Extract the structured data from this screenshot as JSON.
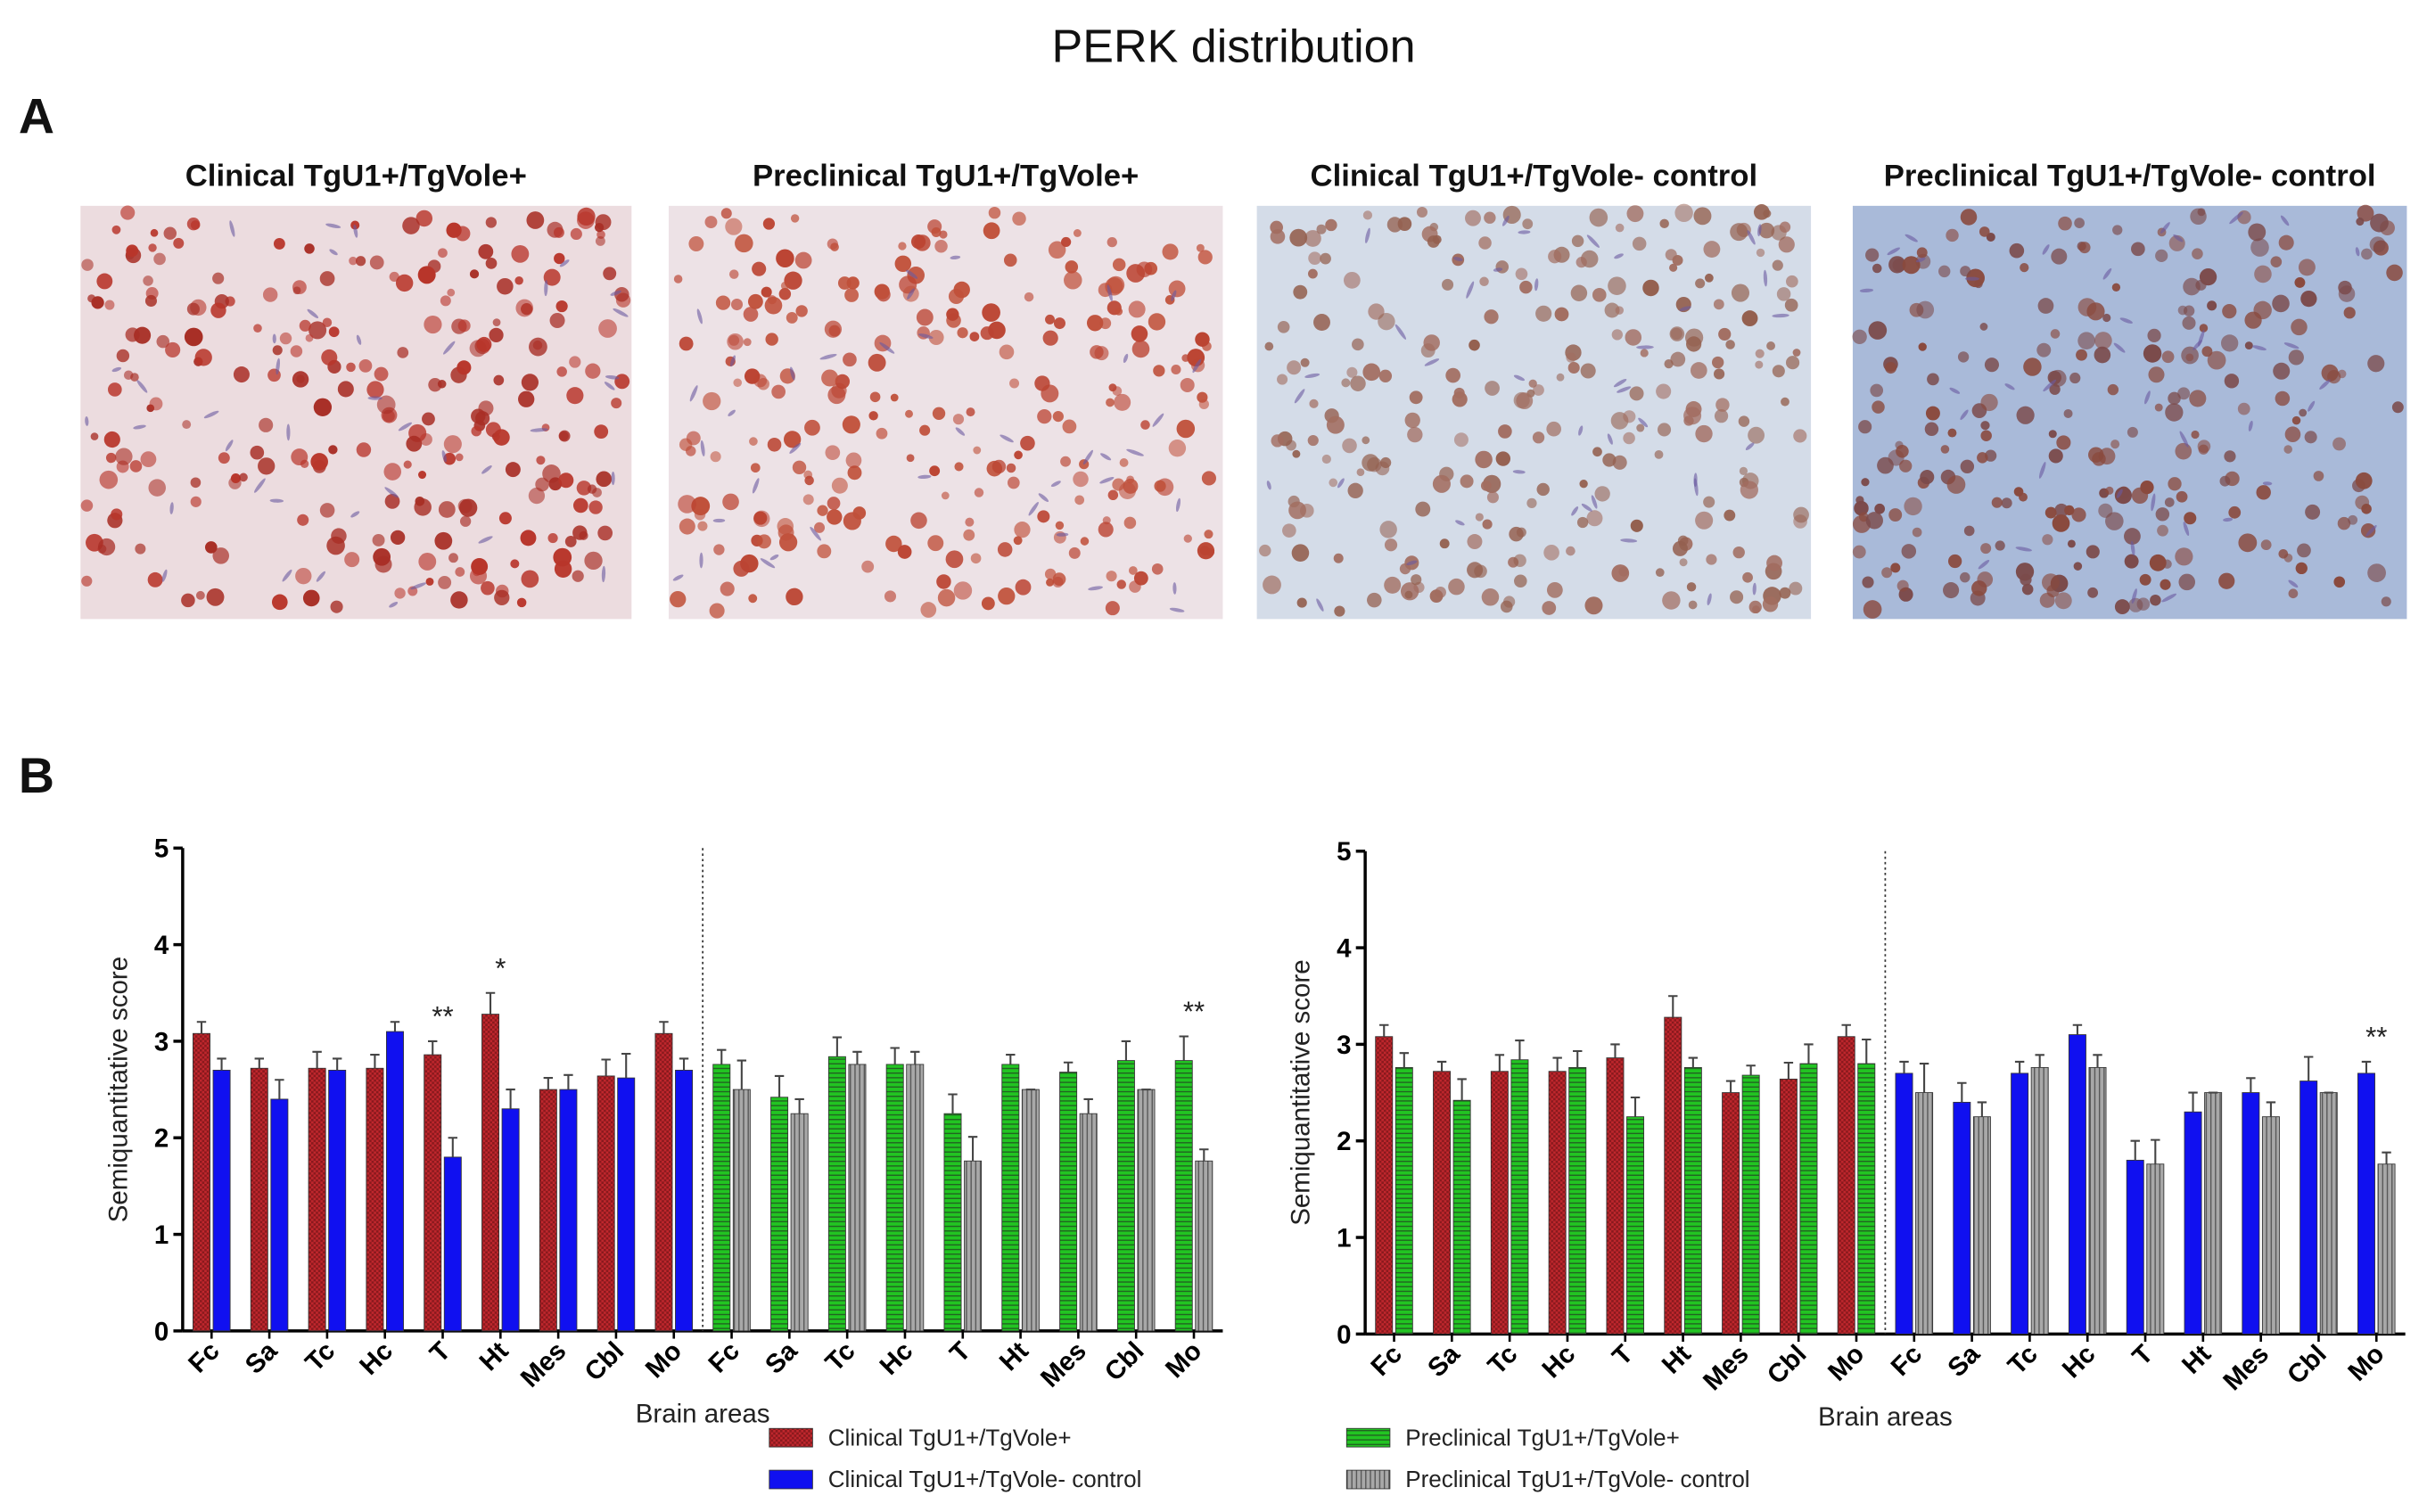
{
  "title": "PERK distribution",
  "labels": [
    "A",
    "B"
  ],
  "panels": [
    {
      "caption": "Clinical TgU1+/TgVole+"
    },
    {
      "caption": "Preclinical TgU1+/TgVole+"
    },
    {
      "caption": "Clinical TgU1+/TgVole- control"
    },
    {
      "caption": "Preclinical TgU1+/TgVole- control"
    }
  ],
  "chart_data": [
    {
      "type": "bar",
      "x_label": "Brain areas",
      "y_label": "Semiquantitative score",
      "categories": [
        "Fc",
        "Sa",
        "Tc",
        "Hc",
        "T",
        "Ht",
        "Mes",
        "Cbl",
        "Mo",
        "Fc",
        "Sa",
        "Tc",
        "Hc",
        "T",
        "Ht",
        "Mes",
        "Cbl",
        "Mo"
      ],
      "ylim": [
        0,
        5
      ],
      "yticks": [
        0,
        1,
        2,
        3,
        4,
        5
      ],
      "significance": [
        null,
        null,
        null,
        null,
        "**",
        "*",
        null,
        null,
        null,
        null,
        null,
        null,
        null,
        null,
        null,
        null,
        null,
        "**"
      ],
      "series": [
        {
          "name": "Clinical TgU1+/TgVole+",
          "color": "#c0272d",
          "pattern": "checker",
          "values": [
            3.08,
            2.72,
            2.72,
            2.72,
            2.86,
            3.28,
            2.5,
            2.64,
            3.08,
            null,
            null,
            null,
            null,
            null,
            null,
            null,
            null,
            null
          ],
          "errors": [
            0.12,
            0.1,
            0.17,
            0.14,
            0.14,
            0.22,
            0.12,
            0.17,
            0.12,
            null,
            null,
            null,
            null,
            null,
            null,
            null,
            null,
            null
          ]
        },
        {
          "name": "Clinical TgU1+/TgVole- control",
          "color": "#1010f0",
          "pattern": "solid",
          "values": [
            2.7,
            2.4,
            2.7,
            3.1,
            1.8,
            2.3,
            2.5,
            2.62,
            2.7,
            null,
            null,
            null,
            null,
            null,
            null,
            null,
            null,
            null
          ],
          "errors": [
            0.12,
            0.2,
            0.12,
            0.1,
            0.2,
            0.2,
            0.15,
            0.25,
            0.12,
            null,
            null,
            null,
            null,
            null,
            null,
            null,
            null,
            null
          ]
        },
        {
          "color": "#22c422",
          "pattern": "hlines",
          "values": [
            null,
            null,
            null,
            null,
            null,
            null,
            null,
            null,
            null,
            2.76,
            2.42,
            2.84,
            2.76,
            2.25,
            2.76,
            2.68,
            2.8,
            2.8
          ],
          "errors": [
            null,
            null,
            null,
            null,
            null,
            null,
            null,
            null,
            null,
            0.15,
            0.22,
            0.2,
            0.17,
            0.2,
            0.1,
            0.1,
            0.2,
            0.25
          ]
        },
        {
          "color": "#a8a8a8",
          "pattern": "vlines",
          "values": [
            null,
            null,
            null,
            null,
            null,
            null,
            null,
            null,
            null,
            2.5,
            2.25,
            2.76,
            2.76,
            1.76,
            2.5,
            2.25,
            2.5,
            1.76
          ],
          "errors": [
            null,
            null,
            null,
            null,
            null,
            null,
            null,
            null,
            null,
            0.3,
            0.15,
            0.13,
            0.13,
            0.25,
            0,
            0.15,
            0,
            0.12
          ]
        }
      ]
    },
    {
      "type": "bar",
      "x_label": "Brain areas",
      "y_label": "Semiquantitative score",
      "categories": [
        "Fc",
        "Sa",
        "Tc",
        "Hc",
        "T",
        "Ht",
        "Mes",
        "Cbl",
        "Mo",
        "Fc",
        "Sa",
        "Tc",
        "Hc",
        "T",
        "Ht",
        "Mes",
        "Cbl",
        "Mo"
      ],
      "ylim": [
        0,
        5
      ],
      "yticks": [
        0,
        1,
        2,
        3,
        4,
        5
      ],
      "significance": [
        null,
        null,
        null,
        null,
        null,
        null,
        null,
        null,
        null,
        null,
        null,
        null,
        null,
        null,
        null,
        null,
        null,
        "**"
      ],
      "series": [
        {
          "color": "#c0272d",
          "pattern": "checker",
          "values": [
            3.08,
            2.72,
            2.72,
            2.72,
            2.86,
            3.28,
            2.5,
            2.64,
            3.08,
            null,
            null,
            null,
            null,
            null,
            null,
            null,
            null,
            null
          ],
          "errors": [
            0.12,
            0.1,
            0.17,
            0.14,
            0.14,
            0.22,
            0.12,
            0.17,
            0.12,
            null,
            null,
            null,
            null,
            null,
            null,
            null,
            null,
            null
          ]
        },
        {
          "name": "Preclinical TgU1+/TgVole+",
          "color": "#22c422",
          "pattern": "hlines",
          "values": [
            2.76,
            2.42,
            2.84,
            2.76,
            2.25,
            2.76,
            2.68,
            2.8,
            2.8,
            null,
            null,
            null,
            null,
            null,
            null,
            null,
            null,
            null
          ],
          "errors": [
            0.15,
            0.22,
            0.2,
            0.17,
            0.2,
            0.1,
            0.1,
            0.2,
            0.25,
            null,
            null,
            null,
            null,
            null,
            null,
            null,
            null,
            null
          ]
        },
        {
          "color": "#1010f0",
          "pattern": "solid",
          "values": [
            null,
            null,
            null,
            null,
            null,
            null,
            null,
            null,
            null,
            2.7,
            2.4,
            2.7,
            3.1,
            1.8,
            2.3,
            2.5,
            2.62,
            2.7
          ],
          "errors": [
            null,
            null,
            null,
            null,
            null,
            null,
            null,
            null,
            null,
            0.12,
            0.2,
            0.12,
            0.1,
            0.2,
            0.2,
            0.15,
            0.25,
            0.12
          ]
        },
        {
          "name": "Preclinical TgU1+/TgVole- control",
          "color": "#a8a8a8",
          "pattern": "vlines",
          "values": [
            null,
            null,
            null,
            null,
            null,
            null,
            null,
            null,
            null,
            2.5,
            2.25,
            2.76,
            2.76,
            1.76,
            2.5,
            2.25,
            2.5,
            1.76
          ],
          "errors": [
            null,
            null,
            null,
            null,
            null,
            null,
            null,
            null,
            null,
            0.3,
            0.15,
            0.13,
            0.13,
            0.25,
            0,
            0.15,
            0,
            0.12
          ]
        }
      ]
    }
  ]
}
